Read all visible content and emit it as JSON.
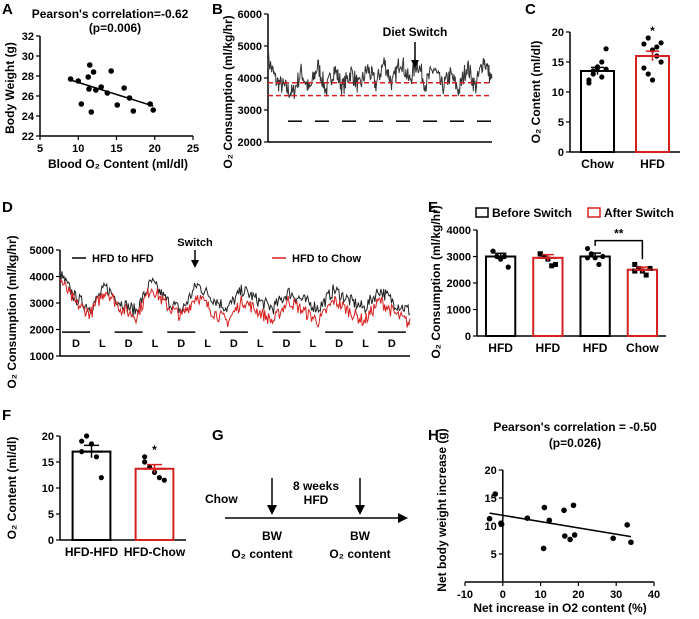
{
  "colors": {
    "black": "#000000",
    "red": "#d62020",
    "series_gray": "#333333"
  },
  "panels": {
    "A": "A",
    "B": "B",
    "C": "C",
    "D": "D",
    "E": "E",
    "F": "F",
    "G": "G",
    "H": "H"
  },
  "chart_data": [
    {
      "id": "A",
      "type": "scatter",
      "title": "Pearson's correlation=-0.62",
      "subtitle": "(p=0.006)",
      "xlabel": "Blood O₂ Content (ml/dl)",
      "ylabel": "Body Weight (g)",
      "xlim": [
        5,
        25
      ],
      "ylim": [
        22,
        32
      ],
      "xticks": [
        5,
        10,
        15,
        20,
        25
      ],
      "yticks": [
        22,
        24,
        26,
        28,
        30,
        32
      ],
      "points": [
        [
          9,
          27.7
        ],
        [
          10,
          27.5
        ],
        [
          10.4,
          25.2
        ],
        [
          11.3,
          27.9
        ],
        [
          11.5,
          29.1
        ],
        [
          11.4,
          26.7
        ],
        [
          11.7,
          24.4
        ],
        [
          12,
          28.4
        ],
        [
          12.3,
          26.6
        ],
        [
          13,
          26.9
        ],
        [
          13.8,
          26.3
        ],
        [
          14.3,
          28.5
        ],
        [
          15.1,
          25.1
        ],
        [
          16,
          26.8
        ],
        [
          16.7,
          25.8
        ],
        [
          17.2,
          24.5
        ],
        [
          19.4,
          25.2
        ],
        [
          19.8,
          24.6
        ]
      ],
      "fit": [
        [
          9,
          27.6
        ],
        [
          19.8,
          25.0
        ]
      ]
    },
    {
      "id": "B",
      "type": "line",
      "ylabel": "O₂ Consumption (ml/kg/hr)",
      "ylim": [
        2000,
        6000
      ],
      "yticks": [
        2000,
        3000,
        4000,
        5000,
        6000
      ],
      "annotation": "Diet Switch",
      "values": [
        4600,
        3900,
        3700,
        3500,
        4200,
        3600,
        4400,
        3600,
        4300,
        3700,
        4200,
        3700,
        4300,
        3800,
        4500,
        3800,
        4600,
        3900,
        4500,
        3800,
        4300,
        3700,
        4100,
        3600,
        4400,
        3700,
        4600,
        3900
      ],
      "reference_lines": [
        3850,
        3450
      ],
      "dark_period_level": 2650
    },
    {
      "id": "C",
      "type": "bar",
      "ylabel": "O₂ Content (ml/dl)",
      "ylim": [
        0,
        20
      ],
      "yticks": [
        0,
        5,
        10,
        15,
        20
      ],
      "categories": [
        "Chow",
        "HFD"
      ],
      "values": [
        13.5,
        16.0
      ],
      "sem": [
        0.6,
        0.8
      ],
      "points": [
        [
          12,
          13,
          14,
          15,
          17.2,
          11.5,
          13.5,
          14.2,
          12.5,
          13.8
        ],
        [
          18,
          19,
          17,
          16,
          15,
          14,
          13,
          12,
          17.5,
          18.2
        ]
      ],
      "significance": "*"
    },
    {
      "id": "D",
      "type": "line",
      "ylabel": "O₂ Consumption (ml/kg/hr)",
      "ylim": [
        1000,
        5000
      ],
      "yticks": [
        1000,
        2000,
        3000,
        4000,
        5000
      ],
      "annotation": "Switch",
      "series": [
        {
          "name": "HFD to HFD",
          "values": [
            4100,
            3200,
            2800,
            3600,
            3000,
            2700,
            3800,
            3100,
            2700,
            3700,
            3200,
            2800,
            3500,
            3100,
            2800,
            3400,
            3100,
            2800,
            3500,
            3100,
            2800,
            3500,
            3000,
            2700
          ]
        },
        {
          "name": "HFD to Chow",
          "values": [
            3900,
            3000,
            2600,
            3500,
            2800,
            2500,
            3600,
            2900,
            2500,
            3300,
            2700,
            2300,
            3100,
            2700,
            2300,
            3100,
            2700,
            2300,
            3100,
            2700,
            2300,
            3100,
            2600,
            2200
          ]
        }
      ],
      "period_labels": [
        "D",
        "L",
        "D",
        "L",
        "D",
        "L",
        "D",
        "L",
        "D",
        "L",
        "D",
        "L",
        "D"
      ]
    },
    {
      "id": "E",
      "type": "bar",
      "ylabel": "O₂ Consumption (ml/kg/hr)",
      "ylim": [
        0,
        4000
      ],
      "yticks": [
        0,
        1000,
        2000,
        3000,
        4000
      ],
      "legend": [
        "Before Switch",
        "After Switch"
      ],
      "legend_placement": "top",
      "categories": [
        "HFD",
        "HFD",
        "HFD",
        "Chow"
      ],
      "values": [
        3000,
        2950,
        3000,
        2500
      ],
      "sem": [
        120,
        120,
        130,
        100
      ],
      "groups": [
        "Before Switch",
        "After Switch",
        "Before Switch",
        "After Switch"
      ],
      "points": [
        [
          3200,
          3000,
          2900,
          3000,
          2600,
          3200
        ],
        [
          3100,
          3000,
          2900,
          2650,
          2700,
          3100
        ],
        [
          3300,
          3100,
          2950,
          2700,
          3000,
          2950
        ],
        [
          2700,
          2550,
          2450,
          2300,
          2550,
          2450
        ]
      ],
      "significance": "**"
    },
    {
      "id": "F",
      "type": "bar",
      "ylabel": "O₂ Content (ml/dl)",
      "ylim": [
        0,
        20
      ],
      "yticks": [
        0,
        5,
        10,
        15,
        20
      ],
      "categories": [
        "HFD-HFD",
        "HFD-Chow"
      ],
      "values": [
        17.0,
        13.7
      ],
      "sem": [
        1.2,
        0.8
      ],
      "points": [
        [
          19,
          20,
          18.5,
          16,
          12,
          17
        ],
        [
          15,
          14,
          13,
          12,
          11.5,
          16
        ]
      ],
      "significance": "*"
    },
    {
      "id": "H",
      "type": "scatter",
      "title": "Pearson's correlation = -0.50",
      "subtitle": "(p=0.026)",
      "xlabel": "Net increase in O2 content (%)",
      "ylabel": "Net body weight increase (g)",
      "xlim": [
        -10,
        40
      ],
      "ylim": [
        0,
        20
      ],
      "xticks": [
        -10,
        0,
        10,
        20,
        30,
        40
      ],
      "yticks": [
        5,
        10,
        15,
        20
      ],
      "points": [
        [
          -3.5,
          11.3
        ],
        [
          -2,
          15.7
        ],
        [
          -0.5,
          10.5
        ],
        [
          -0.3,
          10.3
        ],
        [
          6.5,
          11.4
        ],
        [
          11,
          13.3
        ],
        [
          10.8,
          6
        ],
        [
          12.3,
          11
        ],
        [
          16.2,
          12.8
        ],
        [
          16.4,
          8.2
        ],
        [
          17.8,
          7.6
        ],
        [
          18.7,
          13.7
        ],
        [
          19,
          8.4
        ],
        [
          29.2,
          7.8
        ],
        [
          32.9,
          10.2
        ],
        [
          33.9,
          7.1
        ]
      ],
      "fit": [
        [
          -3.5,
          12.3
        ],
        [
          33.9,
          8.1
        ]
      ]
    }
  ],
  "diagram_G": {
    "start": "Chow",
    "middle_line1": "8 weeks",
    "middle_line2": "HFD",
    "bw1": "BW",
    "o2_1": "O₂ content",
    "bw2": "BW",
    "o2_2": "O₂ content"
  }
}
